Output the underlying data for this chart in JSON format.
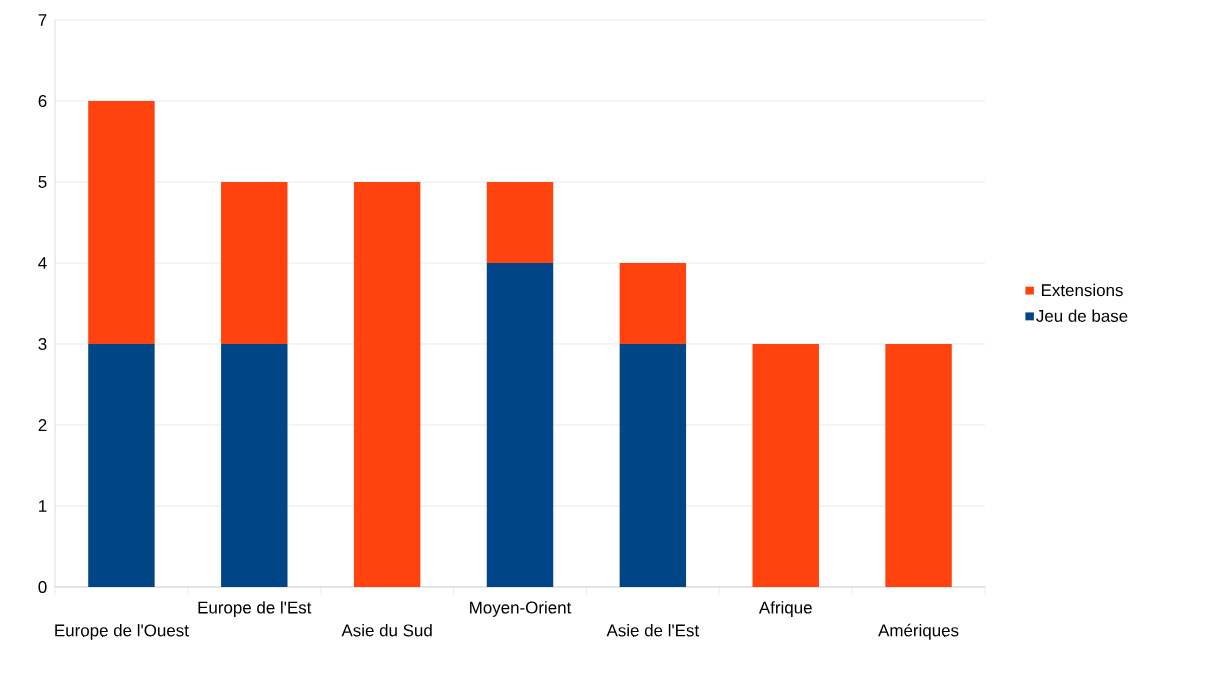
{
  "chart_data": {
    "type": "bar",
    "stacked": true,
    "categories": [
      "Europe de l'Ouest",
      "Europe de l'Est",
      "Asie du Sud",
      "Moyen-Orient",
      "Asie de l'Est",
      "Afrique",
      "Amériques"
    ],
    "series": [
      {
        "name": "Jeu de base",
        "color": "#004586",
        "values": [
          3,
          3,
          0,
          4,
          3,
          0,
          0
        ]
      },
      {
        "name": "Extensions",
        "color": "#ff420e",
        "values": [
          3,
          2,
          5,
          1,
          1,
          3,
          3
        ]
      }
    ],
    "ylim": [
      0,
      7
    ],
    "yticks": [
      0,
      1,
      2,
      3,
      4,
      5,
      6,
      7
    ],
    "grid": "y",
    "legend": "right"
  }
}
